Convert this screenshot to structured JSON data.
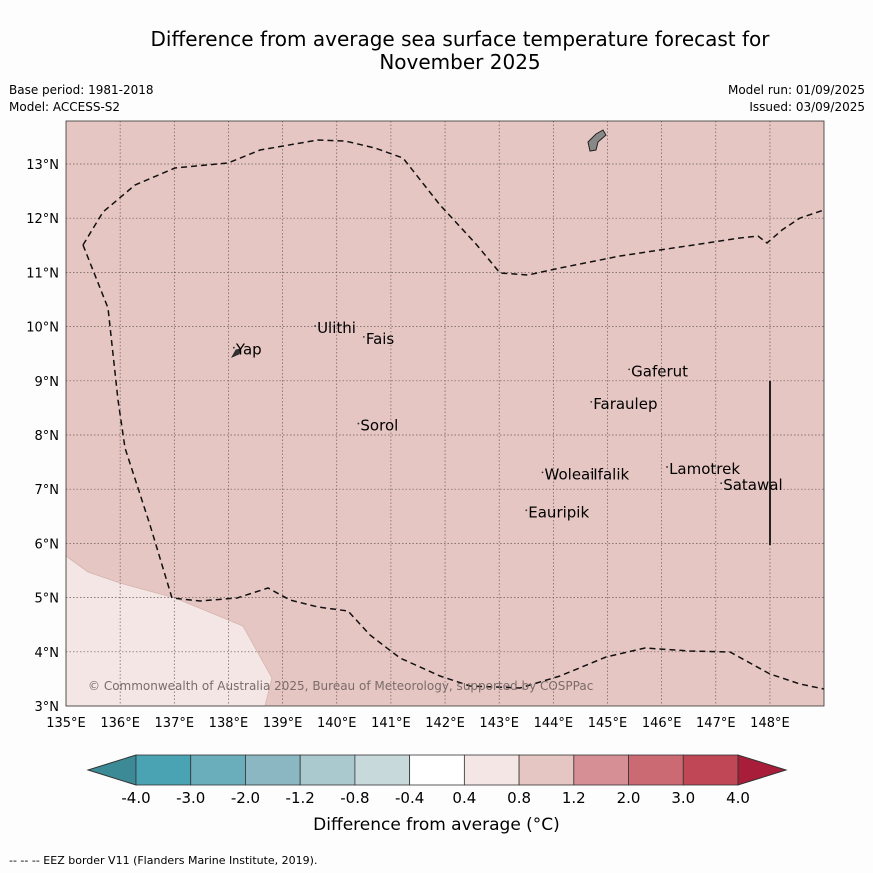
{
  "title_line1": "Difference from average sea surface temperature forecast for",
  "title_line2": "November 2025",
  "meta": {
    "base_period": "Base period: 1981-2018",
    "model": "Model: ACCESS-S2",
    "model_run": "Model run: 01/09/2025",
    "issued": "Issued: 03/09/2025"
  },
  "map": {
    "lon_range": [
      135,
      149
    ],
    "lat_range": [
      3,
      13.8
    ],
    "lon_ticks": [
      "135°E",
      "136°E",
      "137°E",
      "138°E",
      "139°E",
      "140°E",
      "141°E",
      "142°E",
      "143°E",
      "144°E",
      "145°E",
      "146°E",
      "147°E",
      "148°E"
    ],
    "lat_ticks": [
      "3°N",
      "4°N",
      "5°N",
      "6°N",
      "7°N",
      "8°N",
      "9°N",
      "10°N",
      "11°N",
      "12°N",
      "13°N"
    ],
    "background_anomaly_color": "#e6c6c2",
    "cool_region_color": "#f3e6e4",
    "copyright": "© Commonwealth of Australia 2025, Bureau of Meteorology, supported by COSPPac",
    "places": [
      {
        "name": "Yap",
        "lon": 138.1,
        "lat": 9.5
      },
      {
        "name": "Ulithi",
        "lon": 139.6,
        "lat": 9.9
      },
      {
        "name": "Fais",
        "lon": 140.5,
        "lat": 9.7
      },
      {
        "name": "Sorol",
        "lon": 140.4,
        "lat": 8.1
      },
      {
        "name": "Gaferut",
        "lon": 145.4,
        "lat": 9.1
      },
      {
        "name": "Faraulep",
        "lon": 144.7,
        "lat": 8.5
      },
      {
        "name": "Lamotrek",
        "lon": 146.1,
        "lat": 7.3
      },
      {
        "name": "Satawal",
        "lon": 147.1,
        "lat": 7.0
      },
      {
        "name": "Woleai",
        "lon": 143.8,
        "lat": 7.2
      },
      {
        "name": "Ifalik",
        "lon": 144.7,
        "lat": 7.2
      },
      {
        "name": "Eauripik",
        "lon": 143.5,
        "lat": 6.5
      }
    ]
  },
  "colorbar": {
    "labels": [
      "-4.0",
      "-3.0",
      "-2.0",
      "-1.2",
      "-0.8",
      "-0.4",
      "0.4",
      "0.8",
      "1.2",
      "2.0",
      "3.0",
      "4.0"
    ],
    "colors": [
      "#3b8a96",
      "#4aa3b3",
      "#6aaebb",
      "#8ab7c2",
      "#a9c9cf",
      "#c8d9dc",
      "#ffffff",
      "#f4e6e4",
      "#e6c6c2",
      "#d78f96",
      "#cc6a73",
      "#c04756",
      "#a81e3a"
    ],
    "title": "Difference from average (°C)"
  },
  "footer": "--  --  -- EEZ border V11 (Flanders Marine Institute, 2019)."
}
